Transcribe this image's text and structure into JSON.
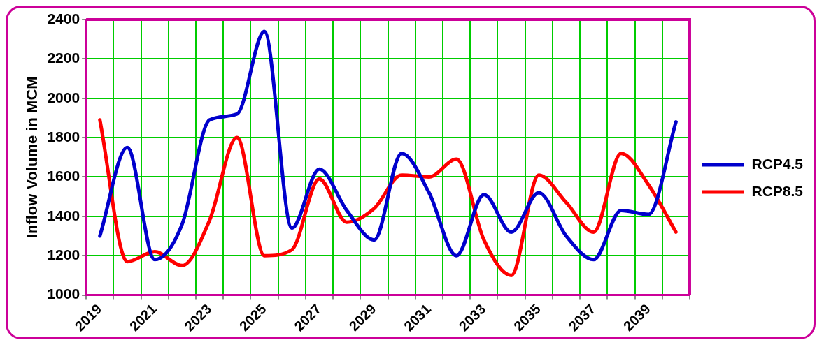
{
  "chart_data": {
    "type": "line",
    "ylabel": "Inflow Volume in MCM",
    "categories": [
      "2019",
      null,
      "2021",
      null,
      "2023",
      null,
      "2025",
      null,
      "2027",
      null,
      "2029",
      null,
      "2031",
      null,
      "2033",
      null,
      "2035",
      null,
      "2037",
      null,
      "2039",
      null
    ],
    "series": [
      {
        "name": "RCP4.5",
        "color": "#0000cc",
        "values": [
          1300,
          1750,
          1180,
          1360,
          1890,
          1920,
          2340,
          1340,
          1640,
          1430,
          1280,
          1720,
          1520,
          1200,
          1510,
          1320,
          1520,
          1300,
          1180,
          1430,
          1410,
          1880
        ]
      },
      {
        "name": "RCP8.5",
        "color": "#ff0000",
        "values": [
          1890,
          1170,
          1220,
          1150,
          1380,
          1800,
          1200,
          1230,
          1590,
          1370,
          1440,
          1610,
          1600,
          1690,
          1280,
          1100,
          1610,
          1470,
          1320,
          1720,
          1560,
          1320
        ]
      }
    ],
    "ylim": [
      1000,
      2400
    ],
    "yticks": [
      1000,
      1200,
      1400,
      1600,
      1800,
      2000,
      2200,
      2400
    ],
    "grid": true,
    "legend": "right",
    "marker": "none",
    "line_style": "solid"
  }
}
